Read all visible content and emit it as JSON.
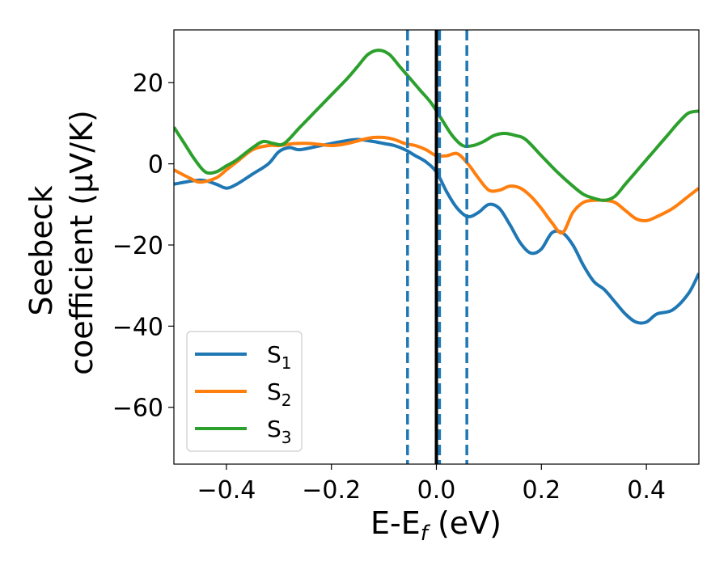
{
  "chart_data": {
    "type": "line",
    "xlabel": {
      "main": "E-E",
      "sub": "f",
      "unit": " (eV)"
    },
    "ylabel": {
      "line1": "Seebeck",
      "line2": "coefficient  (μV/K)"
    },
    "xlim": [
      -0.5,
      0.5
    ],
    "ylim": [
      -74,
      33
    ],
    "xticks": [
      -0.4,
      -0.2,
      0.0,
      0.2,
      0.4
    ],
    "xtick_labels": [
      "−0.4",
      "−0.2",
      "0.0",
      "0.2",
      "0.4"
    ],
    "yticks": [
      -60,
      -40,
      -20,
      0,
      20
    ],
    "ytick_labels": [
      "−60",
      "−40",
      "−20",
      "0",
      "20"
    ],
    "grid": false,
    "legend_position": "lower-left",
    "vlines": [
      {
        "x": 0.0,
        "style": "solid",
        "color": "#000000"
      },
      {
        "x": -0.055,
        "style": "dashed",
        "color": "#1f77b4"
      },
      {
        "x": 0.006,
        "style": "dashed",
        "color": "#1f77b4"
      },
      {
        "x": 0.058,
        "style": "dashed",
        "color": "#1f77b4"
      }
    ],
    "series": [
      {
        "name": "S",
        "sub": "1",
        "color": "#1f77b4",
        "x": [
          -0.5,
          -0.45,
          -0.42,
          -0.4,
          -0.38,
          -0.35,
          -0.32,
          -0.3,
          -0.28,
          -0.26,
          -0.22,
          -0.18,
          -0.15,
          -0.12,
          -0.1,
          -0.08,
          -0.06,
          -0.04,
          -0.02,
          0.0,
          0.02,
          0.04,
          0.06,
          0.08,
          0.1,
          0.12,
          0.14,
          0.16,
          0.18,
          0.2,
          0.22,
          0.24,
          0.26,
          0.28,
          0.3,
          0.32,
          0.34,
          0.36,
          0.38,
          0.4,
          0.42,
          0.45,
          0.48,
          0.5
        ],
        "y": [
          -5,
          -4,
          -5,
          -6,
          -5,
          -2.5,
          0,
          3,
          4,
          3.5,
          4.5,
          5.5,
          6,
          5.5,
          5,
          4.5,
          3.5,
          2,
          0.5,
          -2,
          -7,
          -11,
          -13,
          -12,
          -10,
          -11,
          -15,
          -19.5,
          -22,
          -21,
          -17,
          -17,
          -20,
          -25,
          -29,
          -31,
          -34,
          -37,
          -39,
          -39,
          -37,
          -36,
          -32,
          -27
        ]
      },
      {
        "name": "S",
        "sub": "2",
        "color": "#ff7f0e",
        "x": [
          -0.5,
          -0.47,
          -0.45,
          -0.42,
          -0.4,
          -0.38,
          -0.35,
          -0.32,
          -0.3,
          -0.27,
          -0.24,
          -0.2,
          -0.17,
          -0.14,
          -0.12,
          -0.1,
          -0.08,
          -0.06,
          -0.04,
          -0.02,
          0.0,
          0.02,
          0.04,
          0.06,
          0.08,
          0.1,
          0.12,
          0.14,
          0.16,
          0.18,
          0.2,
          0.22,
          0.24,
          0.26,
          0.28,
          0.3,
          0.32,
          0.34,
          0.36,
          0.38,
          0.4,
          0.42,
          0.45,
          0.48,
          0.5
        ],
        "y": [
          -1.5,
          -3.5,
          -4.5,
          -3.5,
          -1.5,
          0.5,
          3.5,
          4.5,
          4.5,
          5,
          5,
          4.5,
          5,
          6,
          6.5,
          6.5,
          6,
          5,
          4.5,
          3.5,
          2,
          2,
          2.5,
          0,
          -3.5,
          -6.5,
          -6.5,
          -5.5,
          -6,
          -8,
          -11,
          -14.5,
          -17,
          -12,
          -9.5,
          -9,
          -9,
          -9.5,
          -11.5,
          -13.5,
          -14,
          -13,
          -11,
          -8,
          -6
        ]
      },
      {
        "name": "S",
        "sub": "3",
        "color": "#2ca02c",
        "x": [
          -0.5,
          -0.48,
          -0.46,
          -0.44,
          -0.42,
          -0.4,
          -0.38,
          -0.35,
          -0.33,
          -0.31,
          -0.29,
          -0.26,
          -0.23,
          -0.2,
          -0.17,
          -0.15,
          -0.13,
          -0.11,
          -0.09,
          -0.07,
          -0.05,
          -0.03,
          -0.01,
          0.01,
          0.03,
          0.05,
          0.07,
          0.09,
          0.11,
          0.13,
          0.15,
          0.17,
          0.2,
          0.23,
          0.26,
          0.28,
          0.3,
          0.32,
          0.34,
          0.36,
          0.38,
          0.4,
          0.42,
          0.44,
          0.46,
          0.48,
          0.5
        ],
        "y": [
          9,
          5,
          1,
          -2,
          -2,
          -0.5,
          1,
          4,
          5.5,
          5,
          5,
          9,
          13,
          17,
          21,
          24,
          27,
          28,
          27,
          24,
          21,
          18,
          15,
          11,
          7,
          4.5,
          4.5,
          5.5,
          7,
          7.5,
          7,
          6,
          2,
          -2,
          -5.5,
          -7.5,
          -8.5,
          -9,
          -8,
          -5,
          -2,
          1,
          4,
          7,
          10,
          12.5,
          13
        ]
      }
    ]
  }
}
